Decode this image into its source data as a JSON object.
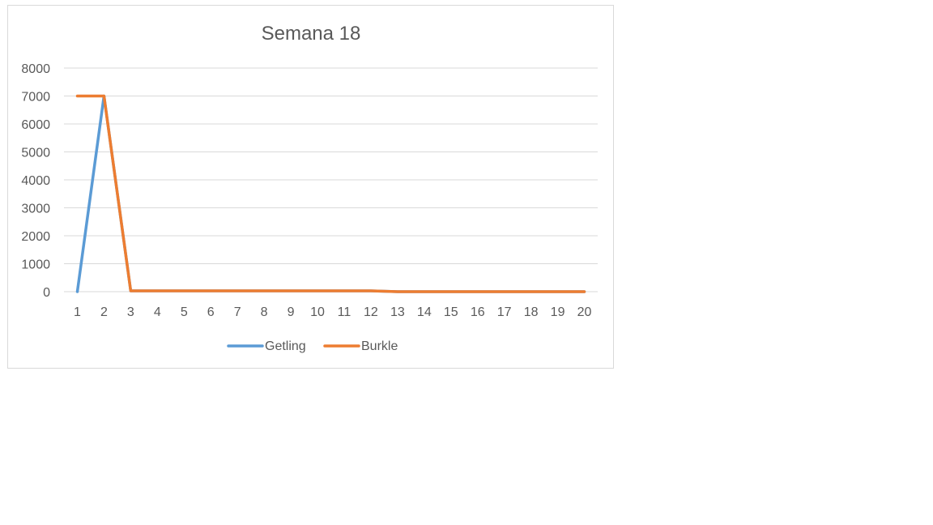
{
  "chart_data": {
    "type": "line",
    "title": "Semana 18",
    "xlabel": "",
    "ylabel": "",
    "x": [
      1,
      2,
      3,
      4,
      5,
      6,
      7,
      8,
      9,
      10,
      11,
      12,
      13,
      14,
      15,
      16,
      17,
      18,
      19,
      20
    ],
    "ylim": [
      0,
      8000
    ],
    "yticks": [
      0,
      1000,
      2000,
      3000,
      4000,
      5000,
      6000,
      7000,
      8000
    ],
    "grid": true,
    "legend_position": "bottom",
    "series": [
      {
        "name": "Getling",
        "color": "#5b9bd5",
        "values": [
          0,
          7000,
          30,
          30,
          30,
          30,
          30,
          30,
          30,
          30,
          30,
          30,
          0,
          0,
          0,
          0,
          0,
          0,
          0,
          0
        ]
      },
      {
        "name": "Burkle",
        "color": "#ed7d31",
        "values": [
          7000,
          7000,
          30,
          30,
          30,
          30,
          30,
          30,
          30,
          30,
          30,
          30,
          0,
          0,
          0,
          0,
          0,
          0,
          0,
          0
        ]
      }
    ]
  }
}
